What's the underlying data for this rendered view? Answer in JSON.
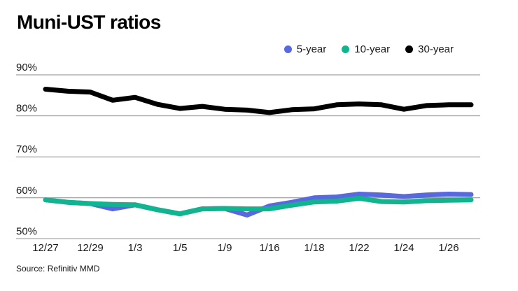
{
  "title": "Muni-UST ratios",
  "source": "Source: Refinitiv MMD",
  "colors": {
    "five_year": "#5868DF",
    "ten_year": "#10B590",
    "thirty_year": "#000000",
    "gridline": "#8A8A8A",
    "tick_text": "#1A1A1A",
    "title_text": "#000000",
    "background": "#FFFFFF"
  },
  "chart_data": {
    "type": "line",
    "title": "Muni-UST ratios",
    "unit": "%",
    "ylim": [
      50,
      90
    ],
    "y_ticks": [
      "90%",
      "80%",
      "70%",
      "60%",
      "50%"
    ],
    "grid": "horizontal",
    "legend_position": "top-right",
    "x_tick_labels": [
      "12/27",
      "12/29",
      "1/3",
      "1/5",
      "1/9",
      "1/16",
      "1/18",
      "1/22",
      "1/24",
      "1/26"
    ],
    "categories": [
      "12/27",
      "",
      "12/29",
      "",
      "1/3",
      "",
      "1/5",
      "",
      "1/9",
      "",
      "1/16",
      "",
      "1/18",
      "",
      "1/22",
      "",
      "1/24",
      "",
      "1/26",
      ""
    ],
    "series": [
      {
        "name": "5-year",
        "color": "#5868DF",
        "values": [
          59.5,
          58.9,
          58.6,
          57.3,
          58.3,
          57.1,
          56.1,
          57.3,
          57.4,
          55.8,
          58.0,
          58.9,
          60.0,
          60.2,
          60.9,
          60.7,
          60.3,
          60.7,
          60.9,
          60.8
        ]
      },
      {
        "name": "10-year",
        "color": "#10B590",
        "values": [
          59.5,
          58.9,
          58.6,
          58.4,
          58.3,
          57.1,
          56.1,
          57.3,
          57.4,
          57.3,
          57.3,
          58.2,
          59.0,
          59.2,
          59.9,
          59.1,
          59.0,
          59.3,
          59.4,
          59.5
        ]
      },
      {
        "name": "30-year",
        "color": "#000000",
        "values": [
          86.5,
          86.0,
          85.8,
          83.8,
          84.5,
          82.8,
          81.8,
          82.3,
          81.6,
          81.4,
          80.8,
          81.5,
          81.7,
          82.7,
          82.9,
          82.7,
          81.6,
          82.5,
          82.7,
          82.7
        ]
      }
    ]
  }
}
